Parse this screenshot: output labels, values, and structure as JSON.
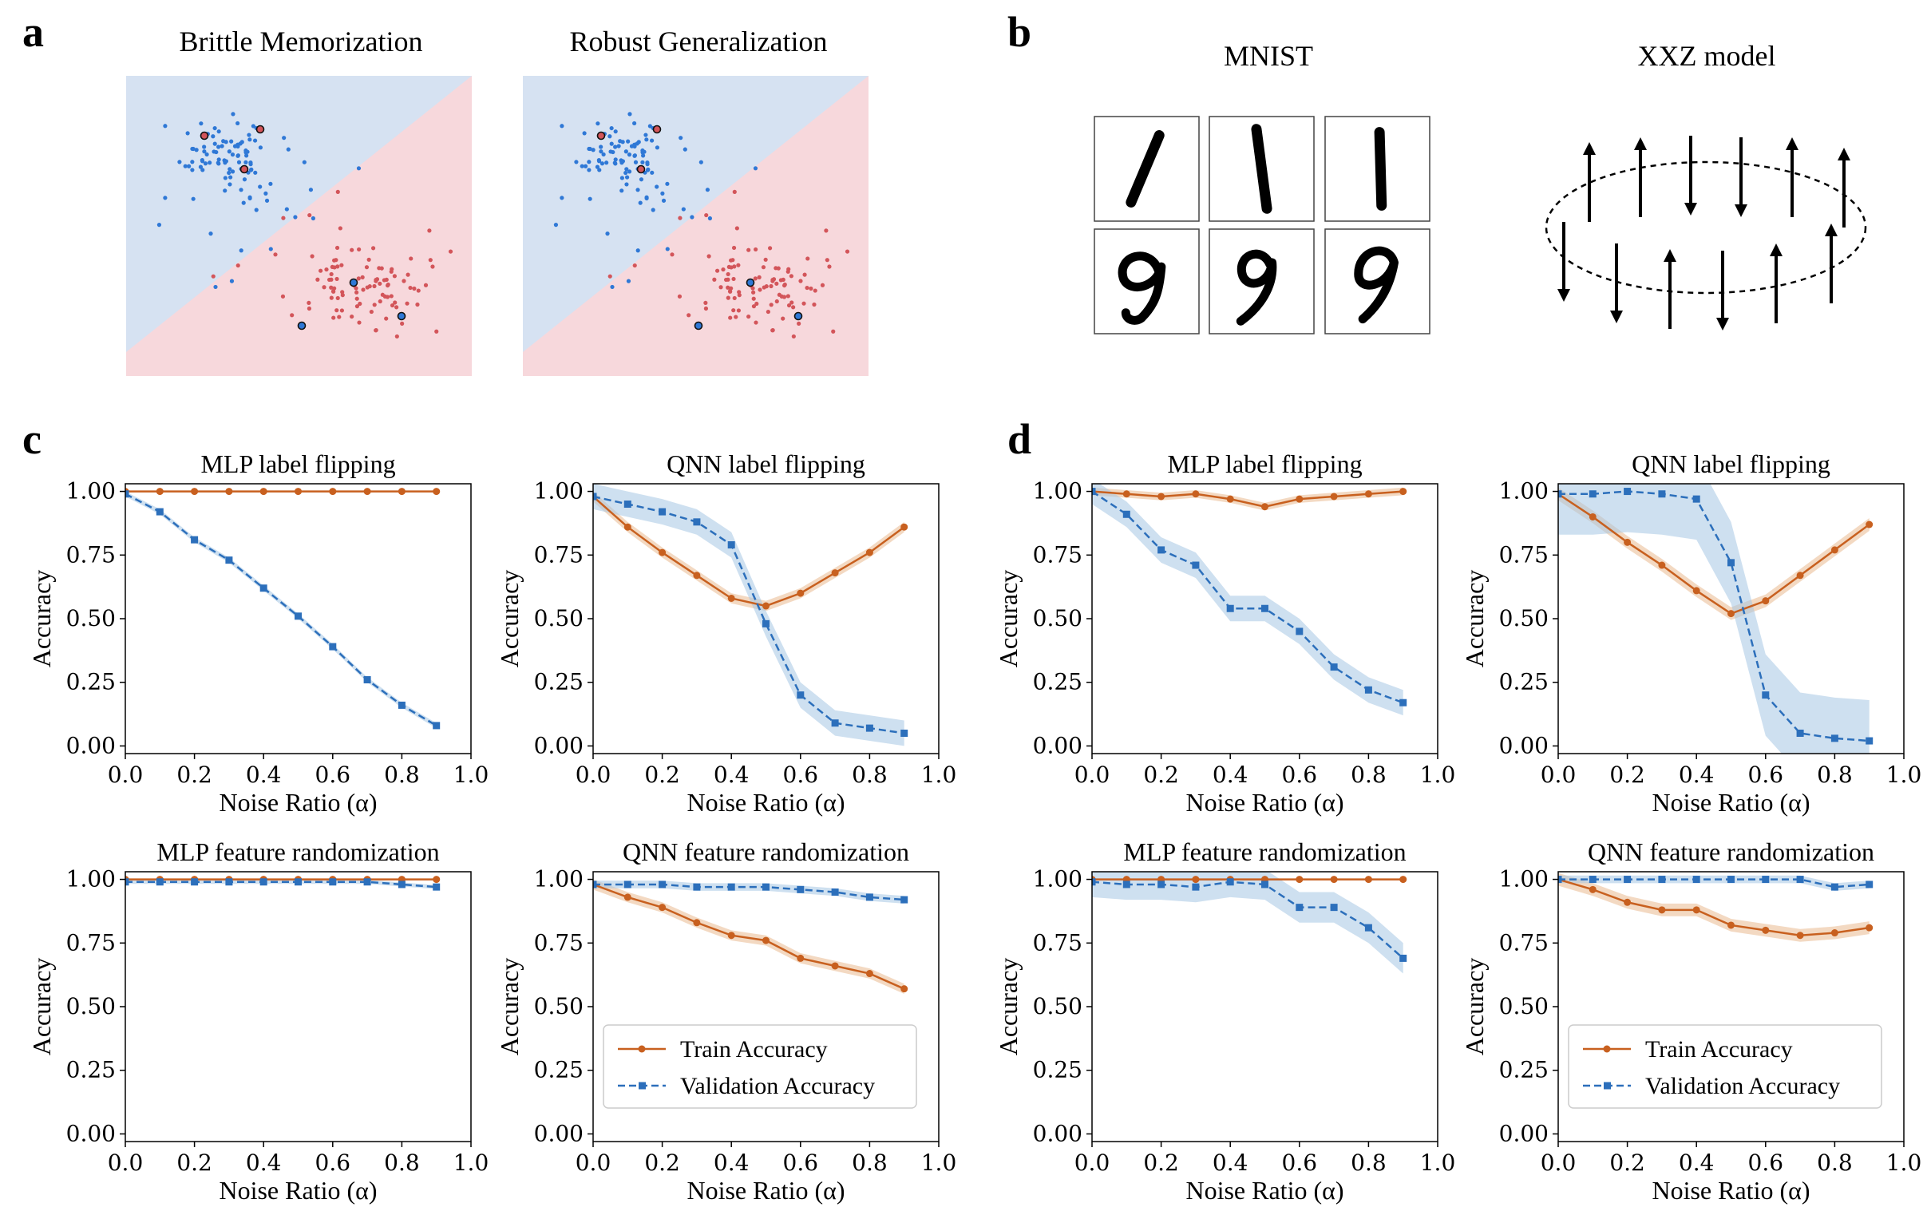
{
  "colors": {
    "train": "#c8601f",
    "train_band": "#e9b990",
    "val": "#2c6fbb",
    "val_band": "#a6c6e3",
    "region_blue": "#d6e2f2",
    "region_red": "#f7d8dc",
    "pt_blue": "#2f78d6",
    "pt_red": "#d3555a"
  },
  "panel_labels": {
    "a": "a",
    "b": "b",
    "c": "c",
    "d": "d"
  },
  "panel_a": {
    "titles": [
      "Brittle Memorization",
      "Robust Generalization"
    ],
    "classes": [
      "blue",
      "red"
    ]
  },
  "panel_b": {
    "mnist_title": "MNIST",
    "xxz_title": "XXZ model",
    "digits_top": [
      "1",
      "1",
      "1"
    ],
    "digits_bottom": [
      "9",
      "9",
      "9"
    ],
    "spins_top": [
      "up",
      "up",
      "down",
      "down",
      "up",
      "up"
    ],
    "spins_bottom": [
      "down",
      "down",
      "up",
      "down",
      "up",
      "up"
    ]
  },
  "axes_common": {
    "xlabel": "Noise Ratio (α)",
    "ylabel": "Accuracy",
    "xticks": [
      "0.0",
      "0.2",
      "0.4",
      "0.6",
      "0.8",
      "1.0"
    ],
    "yticks": [
      "0.00",
      "0.25",
      "0.50",
      "0.75",
      "1.00"
    ],
    "xlim": [
      0,
      1
    ],
    "ylim": [
      -0.03,
      1.03
    ]
  },
  "legend": {
    "train": "Train Accuracy",
    "val": "Validation Accuracy"
  },
  "chart_data": [
    {
      "panel": "c",
      "type": "line",
      "title": "MLP label flipping",
      "legend": false,
      "x": [
        0.0,
        0.1,
        0.2,
        0.3,
        0.4,
        0.5,
        0.6,
        0.7,
        0.8,
        0.9
      ],
      "series": [
        {
          "name": "Train Accuracy",
          "values": [
            1.0,
            1.0,
            1.0,
            1.0,
            1.0,
            1.0,
            1.0,
            1.0,
            1.0,
            1.0
          ],
          "band": 0.0
        },
        {
          "name": "Validation Accuracy",
          "values": [
            0.99,
            0.92,
            0.81,
            0.73,
            0.62,
            0.51,
            0.39,
            0.26,
            0.16,
            0.08
          ],
          "band": 0.01
        }
      ]
    },
    {
      "panel": "c",
      "type": "line",
      "title": "QNN label flipping",
      "legend": false,
      "x": [
        0.0,
        0.1,
        0.2,
        0.3,
        0.4,
        0.5,
        0.6,
        0.7,
        0.8,
        0.9
      ],
      "series": [
        {
          "name": "Train Accuracy",
          "values": [
            0.98,
            0.86,
            0.76,
            0.67,
            0.58,
            0.55,
            0.6,
            0.68,
            0.76,
            0.86
          ],
          "band": 0.02
        },
        {
          "name": "Validation Accuracy",
          "values": [
            0.98,
            0.95,
            0.92,
            0.88,
            0.79,
            0.48,
            0.2,
            0.09,
            0.07,
            0.05
          ],
          "band": 0.05
        }
      ]
    },
    {
      "panel": "d",
      "type": "line",
      "title": "MLP label flipping",
      "legend": false,
      "x": [
        0.0,
        0.1,
        0.2,
        0.3,
        0.4,
        0.5,
        0.6,
        0.7,
        0.8,
        0.9
      ],
      "series": [
        {
          "name": "Train Accuracy",
          "values": [
            1.0,
            0.99,
            0.98,
            0.99,
            0.97,
            0.94,
            0.97,
            0.98,
            0.99,
            1.0
          ],
          "band": 0.015
        },
        {
          "name": "Validation Accuracy",
          "values": [
            1.0,
            0.91,
            0.77,
            0.71,
            0.54,
            0.54,
            0.45,
            0.31,
            0.22,
            0.17
          ],
          "band": 0.05
        }
      ]
    },
    {
      "panel": "d",
      "type": "line",
      "title": "QNN label flipping",
      "legend": false,
      "x": [
        0.0,
        0.1,
        0.2,
        0.3,
        0.4,
        0.5,
        0.6,
        0.7,
        0.8,
        0.9
      ],
      "series": [
        {
          "name": "Train Accuracy",
          "values": [
            0.99,
            0.9,
            0.8,
            0.71,
            0.61,
            0.52,
            0.57,
            0.67,
            0.77,
            0.87
          ],
          "band": 0.025
        },
        {
          "name": "Validation Accuracy",
          "values": [
            0.99,
            0.99,
            1.0,
            0.99,
            0.97,
            0.72,
            0.2,
            0.05,
            0.03,
            0.02
          ],
          "band": 0.16
        }
      ]
    },
    {
      "panel": "c",
      "type": "line",
      "title": "MLP feature randomization",
      "legend": false,
      "x": [
        0.0,
        0.1,
        0.2,
        0.3,
        0.4,
        0.5,
        0.6,
        0.7,
        0.8,
        0.9
      ],
      "series": [
        {
          "name": "Train Accuracy",
          "values": [
            1.0,
            1.0,
            1.0,
            1.0,
            1.0,
            1.0,
            1.0,
            1.0,
            1.0,
            1.0
          ],
          "band": 0.0
        },
        {
          "name": "Validation Accuracy",
          "values": [
            0.99,
            0.99,
            0.99,
            0.99,
            0.99,
            0.99,
            0.99,
            0.99,
            0.98,
            0.97
          ],
          "band": 0.008
        }
      ]
    },
    {
      "panel": "c",
      "type": "line",
      "title": "QNN feature randomization",
      "legend": true,
      "x": [
        0.0,
        0.1,
        0.2,
        0.3,
        0.4,
        0.5,
        0.6,
        0.7,
        0.8,
        0.9
      ],
      "series": [
        {
          "name": "Train Accuracy",
          "values": [
            0.98,
            0.93,
            0.89,
            0.83,
            0.78,
            0.76,
            0.69,
            0.66,
            0.63,
            0.57
          ],
          "band": 0.02
        },
        {
          "name": "Validation Accuracy",
          "values": [
            0.98,
            0.98,
            0.98,
            0.97,
            0.97,
            0.97,
            0.96,
            0.95,
            0.93,
            0.92
          ],
          "band": 0.015
        }
      ]
    },
    {
      "panel": "d",
      "type": "line",
      "title": "MLP feature randomization",
      "legend": false,
      "x": [
        0.0,
        0.1,
        0.2,
        0.3,
        0.4,
        0.5,
        0.6,
        0.7,
        0.8,
        0.9
      ],
      "series": [
        {
          "name": "Train Accuracy",
          "values": [
            1.0,
            1.0,
            1.0,
            1.0,
            1.0,
            1.0,
            1.0,
            1.0,
            1.0,
            1.0
          ],
          "band": 0.0
        },
        {
          "name": "Validation Accuracy",
          "values": [
            0.99,
            0.98,
            0.98,
            0.97,
            0.99,
            0.98,
            0.89,
            0.89,
            0.81,
            0.69
          ],
          "band": 0.06
        }
      ]
    },
    {
      "panel": "d",
      "type": "line",
      "title": "QNN feature randomization",
      "legend": true,
      "x": [
        0.0,
        0.1,
        0.2,
        0.3,
        0.4,
        0.5,
        0.6,
        0.7,
        0.8,
        0.9
      ],
      "series": [
        {
          "name": "Train Accuracy",
          "values": [
            1.0,
            0.96,
            0.91,
            0.88,
            0.88,
            0.82,
            0.8,
            0.78,
            0.79,
            0.81
          ],
          "band": 0.025
        },
        {
          "name": "Validation Accuracy",
          "values": [
            1.0,
            1.0,
            1.0,
            1.0,
            1.0,
            1.0,
            1.0,
            1.0,
            0.97,
            0.98
          ],
          "band": 0.015
        }
      ]
    }
  ]
}
